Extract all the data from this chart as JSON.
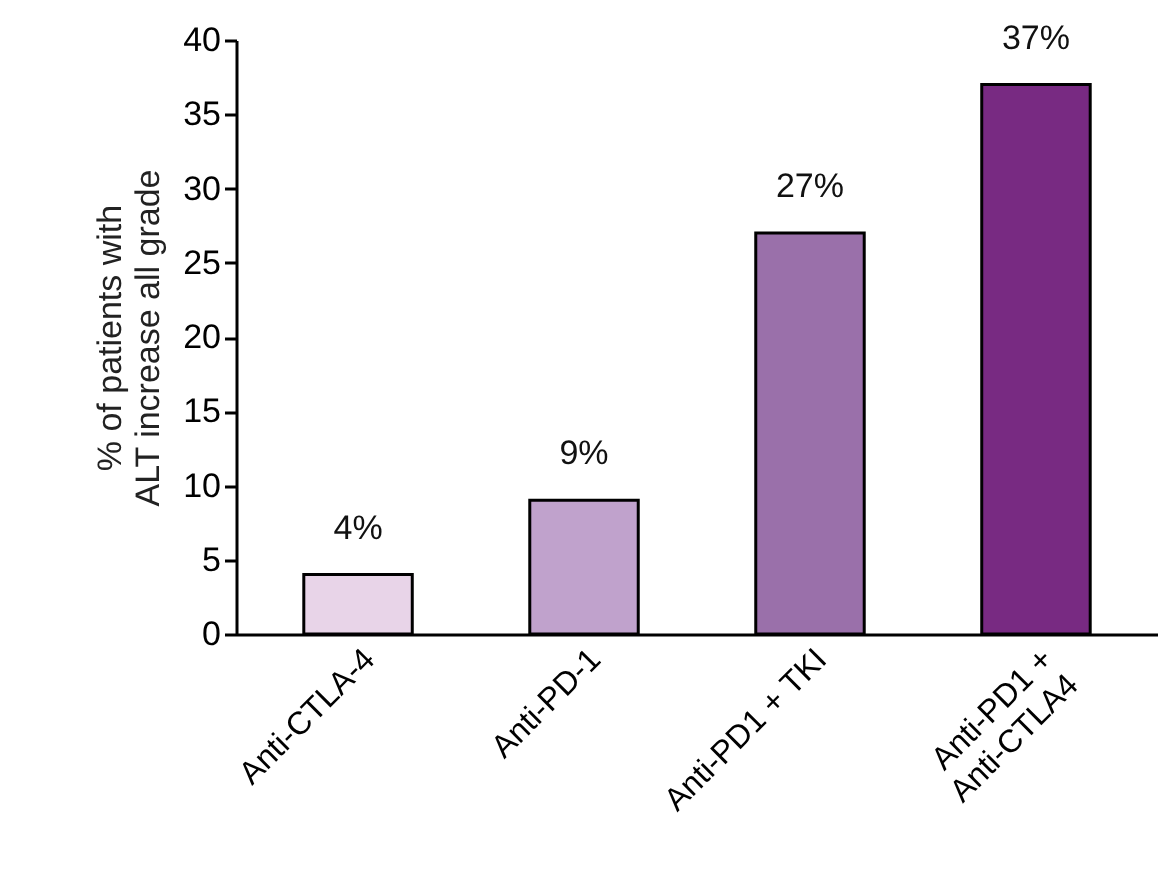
{
  "chart_data": {
    "type": "bar",
    "ylabel": "% of patients with\nALT increase all grade",
    "categories": [
      "Anti-CTLA-4",
      "Anti-PD-1",
      "Anti-PD1 + TKI",
      "Anti-PD1 +\nAnti-CTLA4"
    ],
    "values": [
      4,
      9,
      27,
      37
    ],
    "colors": [
      "#e8d4e8",
      "#c0a2cc",
      "#9a70aa",
      "#782a82"
    ],
    "value_labels": [
      "4%",
      "9%",
      "27%",
      "37%"
    ],
    "ylim": [
      0,
      40
    ],
    "yticks": [
      0,
      5,
      10,
      15,
      20,
      25,
      30,
      35,
      40
    ],
    "grid": false
  }
}
